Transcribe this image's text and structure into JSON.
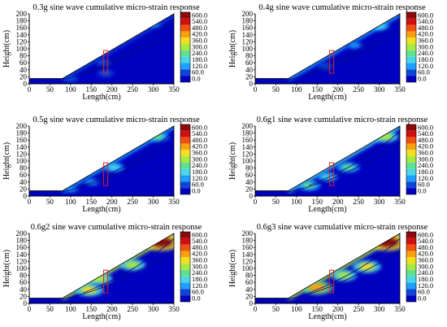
{
  "figure": {
    "xlabel": "Length(cm)",
    "ylabel": "Height(cm)",
    "x_ticks": [
      0,
      50,
      100,
      150,
      200,
      250,
      300,
      350
    ],
    "y_ticks": [
      0,
      20,
      40,
      60,
      80,
      100,
      120,
      140,
      160,
      180,
      200
    ],
    "colorbar_ticks": [
      "600.0",
      "540.0",
      "480.0",
      "420.0",
      "360.0",
      "300.0",
      "240.0",
      "180.0",
      "120.0",
      "60.0",
      "0.0"
    ],
    "colors": {
      "low": "#0000c0",
      "band_60": "#0f46d8",
      "band_120": "#1fa0ff",
      "band_180": "#4ad6e8",
      "band_240": "#60e090",
      "band_300": "#a8e840",
      "band_360": "#f0e020",
      "band_420": "#f8a010",
      "band_480": "#f05010",
      "band_540": "#d01010",
      "high": "#8c0a0a",
      "monitor_box": "#e02020"
    }
  },
  "chart_data": [
    {
      "type": "heatmap",
      "title": "0.3g sine wave cumulative micro-strain response",
      "xlabel": "Length(cm)",
      "ylabel": "Height(cm)",
      "xlim": [
        0,
        350
      ],
      "ylim": [
        0,
        200
      ],
      "zlim": [
        0,
        600
      ],
      "slope_profile_x": [
        0,
        80,
        350,
        350,
        0
      ],
      "slope_profile_y": [
        15,
        15,
        200,
        0,
        0
      ],
      "hotspots": [
        {
          "x": 185,
          "y": 30,
          "value": 80
        },
        {
          "x": 180,
          "y": 60,
          "value": 60
        },
        {
          "x": 300,
          "y": 170,
          "value": 120
        },
        {
          "x": 100,
          "y": 15,
          "value": 60
        }
      ]
    },
    {
      "type": "heatmap",
      "title": "0.4g sine wave cumulative micro-strain response",
      "xlabel": "Length(cm)",
      "ylabel": "Height(cm)",
      "xlim": [
        0,
        350
      ],
      "ylim": [
        0,
        200
      ],
      "zlim": [
        0,
        600
      ],
      "slope_profile_x": [
        0,
        80,
        350,
        350,
        0
      ],
      "slope_profile_y": [
        15,
        15,
        200,
        0,
        0
      ],
      "hotspots": [
        {
          "x": 300,
          "y": 165,
          "value": 180
        },
        {
          "x": 240,
          "y": 110,
          "value": 120
        },
        {
          "x": 170,
          "y": 50,
          "value": 60
        }
      ]
    },
    {
      "type": "heatmap",
      "title": "0.5g sine wave cumulative micro-strain response",
      "xlabel": "Length(cm)",
      "ylabel": "Height(cm)",
      "xlim": [
        0,
        350
      ],
      "ylim": [
        0,
        200
      ],
      "zlim": [
        0,
        600
      ],
      "slope_profile_x": [
        0,
        80,
        350,
        350,
        0
      ],
      "slope_profile_y": [
        15,
        15,
        200,
        0,
        0
      ],
      "hotspots": [
        {
          "x": 205,
          "y": 82,
          "value": 180
        },
        {
          "x": 310,
          "y": 170,
          "value": 240
        },
        {
          "x": 150,
          "y": 40,
          "value": 120
        },
        {
          "x": 100,
          "y": 20,
          "value": 120
        }
      ]
    },
    {
      "type": "heatmap",
      "title": "0.6g1 sine wave cumulative micro-strain response",
      "xlabel": "Length(cm)",
      "ylabel": "Height(cm)",
      "xlim": [
        0,
        350
      ],
      "ylim": [
        0,
        200
      ],
      "zlim": [
        0,
        600
      ],
      "slope_profile_x": [
        0,
        80,
        350,
        350,
        0
      ],
      "slope_profile_y": [
        15,
        15,
        200,
        0,
        0
      ],
      "hotspots": [
        {
          "x": 225,
          "y": 82,
          "value": 240
        },
        {
          "x": 175,
          "y": 55,
          "value": 180
        },
        {
          "x": 315,
          "y": 170,
          "value": 300
        },
        {
          "x": 130,
          "y": 30,
          "value": 240
        }
      ]
    },
    {
      "type": "heatmap",
      "title": "0.6g2 sine wave cumulative micro-strain response",
      "xlabel": "Length(cm)",
      "ylabel": "Height(cm)",
      "xlim": [
        0,
        350
      ],
      "ylim": [
        0,
        200
      ],
      "zlim": [
        0,
        600
      ],
      "slope_profile_x": [
        0,
        80,
        350,
        350,
        0
      ],
      "slope_profile_y": [
        15,
        15,
        200,
        0,
        0
      ],
      "hotspots": [
        {
          "x": 170,
          "y": 70,
          "value": 300
        },
        {
          "x": 250,
          "y": 110,
          "value": 300
        },
        {
          "x": 145,
          "y": 38,
          "value": 360
        },
        {
          "x": 320,
          "y": 175,
          "value": 600
        }
      ]
    },
    {
      "type": "heatmap",
      "title": "0.6g3 sine wave cumulative micro-strain response",
      "xlabel": "Length(cm)",
      "ylabel": "Height(cm)",
      "xlim": [
        0,
        350
      ],
      "ylim": [
        0,
        200
      ],
      "zlim": [
        0,
        600
      ],
      "slope_profile_x": [
        0,
        80,
        350,
        350,
        0
      ],
      "slope_profile_y": [
        15,
        15,
        200,
        0,
        0
      ],
      "hotspots": [
        {
          "x": 270,
          "y": 105,
          "value": 360
        },
        {
          "x": 215,
          "y": 80,
          "value": 300
        },
        {
          "x": 150,
          "y": 45,
          "value": 420
        },
        {
          "x": 320,
          "y": 175,
          "value": 600
        }
      ]
    }
  ]
}
